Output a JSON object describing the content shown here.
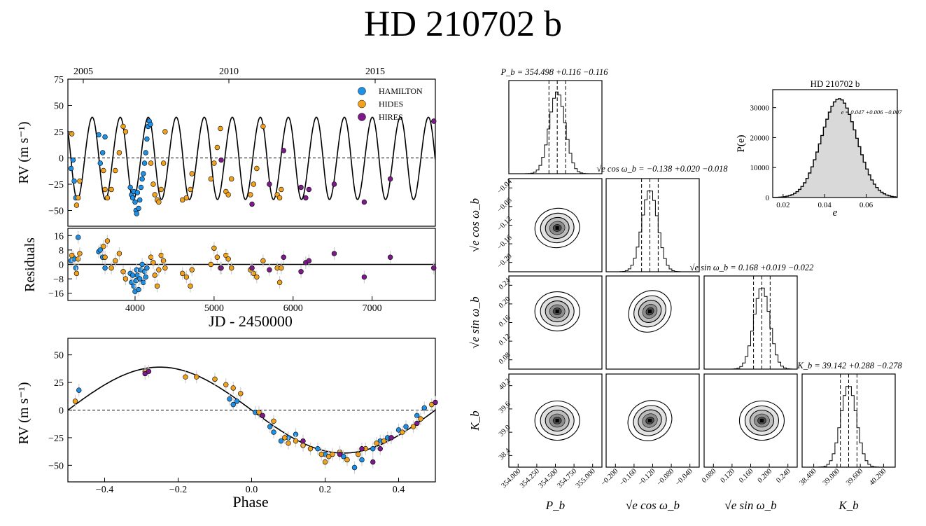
{
  "figure": {
    "title": "HD 210702 b"
  },
  "colors": {
    "HAMILTON": "#1e90e6",
    "HIDES": "#f0a21e",
    "HIRES": "#7d1a8a",
    "model": "#000000",
    "hist_fill": "#d9d9d9"
  },
  "chart_data": [
    {
      "id": "rv_time",
      "type": "scatter",
      "title": "",
      "xlabel": "JD - 2450000",
      "ylabel": "RV (m s⁻¹)",
      "xlim": [
        3150,
        7800
      ],
      "ylim": [
        -65,
        75
      ],
      "yticks": [
        "75",
        "50",
        "25",
        "0",
        "−25",
        "−50"
      ],
      "xticks": [
        "4000",
        "5000",
        "6000",
        "7000"
      ],
      "top_axis_ticks": [
        "2005",
        "2010",
        "2015"
      ],
      "legend": {
        "position": "top-right",
        "entries": [
          "HAMILTON",
          "HIDES",
          "HIRES"
        ]
      },
      "model": {
        "period": 354.498,
        "K": 39.142,
        "e": 0.047,
        "T0": 3200
      },
      "series": [
        {
          "name": "HAMILTON",
          "x": [
            3190,
            3215,
            3230,
            3250,
            3540,
            3560,
            3590,
            3620,
            3940,
            3955,
            3970,
            3985,
            4000,
            4012,
            4020,
            4030,
            4045,
            4060,
            4075,
            4090,
            4105,
            4120,
            4135,
            4150,
            4165,
            4180,
            4195
          ],
          "y": [
            -10,
            -2,
            -22,
            -38,
            22,
            -5,
            5,
            20,
            -28,
            -35,
            -38,
            -32,
            -42,
            -50,
            -53,
            -33,
            -48,
            -40,
            -28,
            -20,
            -15,
            -5,
            5,
            18,
            30,
            35,
            32
          ]
        },
        {
          "name": "HIDES",
          "x": [
            3200,
            3260,
            3280,
            3300,
            3600,
            3620,
            3650,
            3700,
            3750,
            3800,
            3850,
            3880,
            4200,
            4230,
            4250,
            4280,
            4300,
            4330,
            4360,
            4380,
            4600,
            4650,
            4700,
            4720,
            4960,
            5000,
            5040,
            5080,
            5150,
            5180,
            5220,
            5460,
            5500,
            5540,
            5620,
            5800,
            5830,
            5850
          ],
          "y": [
            23,
            -45,
            -38,
            -22,
            -12,
            -30,
            -38,
            -30,
            -12,
            5,
            30,
            25,
            -5,
            -25,
            -35,
            -40,
            -42,
            -30,
            -5,
            25,
            -40,
            -38,
            -30,
            -15,
            -20,
            -5,
            10,
            28,
            -32,
            -35,
            -20,
            -35,
            -25,
            -10,
            30,
            -35,
            -38,
            -30
          ]
        },
        {
          "name": "HIRES",
          "x": [
            5090,
            5480,
            5700,
            5880,
            6100,
            6160,
            6200,
            6520,
            6900,
            7230,
            7780
          ],
          "y": [
            -2,
            -44,
            -25,
            7,
            -28,
            -38,
            -30,
            -25,
            -42,
            -20,
            35
          ]
        }
      ]
    },
    {
      "id": "residuals",
      "type": "scatter",
      "xlabel": "JD - 2450000",
      "ylabel": "Residuals",
      "xlim": [
        3150,
        7800
      ],
      "ylim": [
        -20,
        20
      ],
      "yticks": [
        "16",
        "8",
        "0",
        "−8",
        "−16"
      ],
      "xticks": [
        "4000",
        "5000",
        "6000",
        "7000"
      ],
      "series": [
        {
          "name": "HAMILTON",
          "x": [
            3190,
            3215,
            3230,
            3250,
            3280,
            3540,
            3560,
            3590,
            3620,
            3940,
            3955,
            3970,
            3985,
            4000,
            4012,
            4020,
            4030,
            4045,
            4060,
            4075,
            4090,
            4105,
            4120,
            4135,
            4150
          ],
          "y": [
            2,
            4,
            3,
            -2,
            15,
            7,
            8,
            4,
            -2,
            -5,
            -10,
            -6,
            -12,
            -15,
            -9,
            -3,
            -6,
            -14,
            -8,
            -3,
            0,
            -10,
            -4,
            -7,
            -2
          ]
        },
        {
          "name": "HIDES",
          "x": [
            3200,
            3260,
            3280,
            3300,
            3600,
            3620,
            3650,
            3700,
            3750,
            3800,
            3850,
            3880,
            4200,
            4230,
            4250,
            4280,
            4300,
            4330,
            4360,
            4380,
            4600,
            4650,
            4700,
            4720,
            4960,
            5000,
            5040,
            5080,
            5150,
            5180,
            5220,
            5460,
            5500,
            5540,
            5620,
            5800,
            5830,
            5850
          ],
          "y": [
            5,
            -5,
            3,
            6,
            10,
            4,
            13,
            -2,
            2,
            6,
            -4,
            -8,
            4,
            1,
            -6,
            -12,
            -3,
            5,
            2,
            -2,
            -5,
            -7,
            -12,
            -3,
            0,
            9,
            4,
            -2,
            5,
            3,
            -2,
            -3,
            -5,
            -7,
            2,
            -2,
            -10,
            -2
          ]
        },
        {
          "name": "HIRES",
          "x": [
            5090,
            5480,
            5700,
            5880,
            6100,
            6160,
            6200,
            6520,
            6900,
            7230,
            7780
          ],
          "y": [
            -2,
            -2,
            -3,
            4,
            -4,
            1,
            2,
            6,
            -7,
            4,
            -2
          ]
        }
      ]
    },
    {
      "id": "rv_phase",
      "type": "scatter",
      "xlabel": "Phase",
      "ylabel": "RV (m s⁻¹)",
      "xlim": [
        -0.5,
        0.5
      ],
      "ylim": [
        -65,
        65
      ],
      "yticks": [
        "50",
        "25",
        "0",
        "−25",
        "−50"
      ],
      "xticks": [
        "−0.4",
        "−0.2",
        "0.0",
        "0.2",
        "0.4"
      ],
      "series": [
        {
          "name": "HAMILTON",
          "x": [
            -0.47,
            -0.06,
            -0.05,
            -0.04,
            0.01,
            0.05,
            0.06,
            0.08,
            0.1,
            0.12,
            0.18,
            0.2,
            0.25,
            0.28,
            0.3,
            0.33,
            0.35,
            0.37,
            0.4,
            0.42,
            0.45,
            0.47
          ],
          "y": [
            18,
            10,
            5,
            8,
            -2,
            -15,
            -20,
            -28,
            -25,
            -22,
            -35,
            -40,
            -42,
            -52,
            -45,
            -35,
            -28,
            -25,
            -18,
            -15,
            -5,
            2
          ]
        },
        {
          "name": "HIDES",
          "x": [
            -0.48,
            -0.29,
            -0.18,
            -0.15,
            -0.1,
            -0.07,
            -0.05,
            -0.03,
            0.02,
            0.06,
            0.09,
            0.1,
            0.12,
            0.14,
            0.16,
            0.19,
            0.2,
            0.21,
            0.22,
            0.24,
            0.26,
            0.29,
            0.31,
            0.34,
            0.36,
            0.38,
            0.41,
            0.44,
            0.46,
            0.49
          ],
          "y": [
            8,
            35,
            30,
            30,
            28,
            23,
            20,
            15,
            -2,
            -10,
            -25,
            -30,
            -28,
            -32,
            -35,
            -40,
            -47,
            -42,
            -40,
            -38,
            -45,
            -40,
            -35,
            -30,
            -28,
            -25,
            -20,
            -15,
            -8,
            5
          ]
        },
        {
          "name": "HIRES",
          "x": [
            -0.29,
            -0.28,
            0.03,
            0.14,
            0.24,
            0.3,
            0.33,
            0.35,
            0.38,
            0.45,
            0.5
          ],
          "y": [
            33,
            35,
            -5,
            -28,
            -40,
            -35,
            -47,
            -35,
            -25,
            -12,
            7
          ]
        }
      ]
    }
  ],
  "corner": {
    "titles": {
      "P": "P_b = 354.498 +0.116 −0.116",
      "ecos": "√e cos ω_b = −0.138 +0.020 −0.018",
      "esin": "√e sin ω_b = 0.168 +0.019 −0.022",
      "K": "K_b = 39.142 +0.288 −0.278"
    },
    "bottom_labels": [
      "P_b",
      "√e cos ω_b",
      "√e sin ω_b",
      "K_b"
    ],
    "left_labels": [
      "√e cos ω_b",
      "√e sin ω_b",
      "K_b"
    ],
    "x_ticks": {
      "P": [
        "354.000",
        "354.250",
        "354.500",
        "354.750",
        "355.000"
      ],
      "ecos": [
        "−0.200",
        "−0.160",
        "−0.120",
        "−0.080",
        "−0.040"
      ],
      "esin": [
        "0.080",
        "0.120",
        "0.160",
        "0.200",
        "0.240"
      ],
      "K": [
        "38.400",
        "39.000",
        "39.600",
        "40.200"
      ]
    },
    "y_ticks": {
      "ecos": [
        "−0.04",
        "−0.08",
        "−0.12",
        "−0.16",
        "−0.20"
      ],
      "esin": [
        "0.24",
        "0.20",
        "0.16",
        "0.12",
        "0.08"
      ],
      "K": [
        "40.2",
        "39.6",
        "39.0",
        "38.4"
      ]
    }
  },
  "ecc_hist": {
    "type": "histogram",
    "title": "HD 210702 b",
    "xlabel": "e",
    "ylabel": "P(e)",
    "annotation": "e = 0.047 +0.006 −0.007",
    "mean": 0.047,
    "sigma": 0.0085,
    "peak": 33000,
    "xlim": [
      0.015,
      0.075
    ],
    "ylim": [
      0,
      36000
    ],
    "xticks": [
      "0.02",
      "0.04",
      "0.06"
    ],
    "yticks": [
      "30000",
      "20000",
      "10000",
      "0"
    ]
  }
}
